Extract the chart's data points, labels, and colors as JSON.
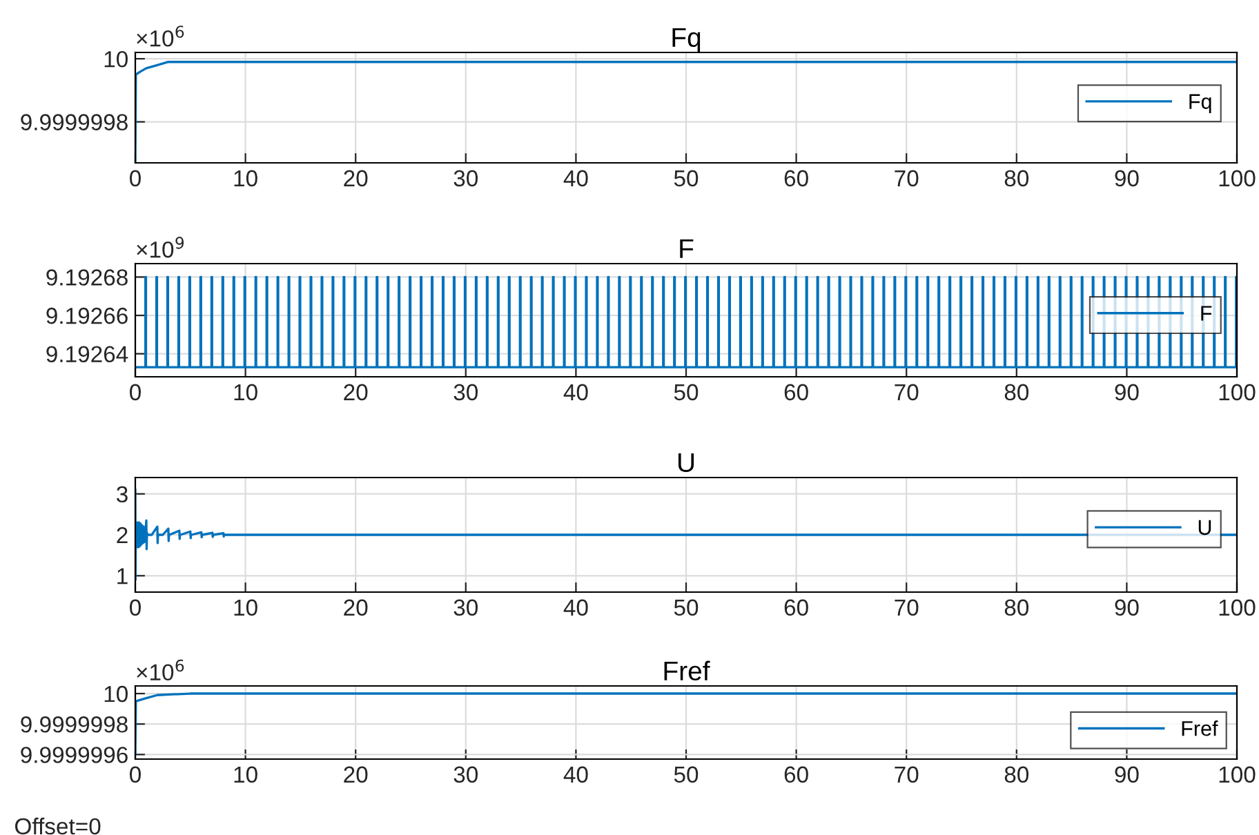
{
  "chart_data": [
    {
      "type": "line",
      "title": "Fq",
      "annotations": [
        "×10$^{6}$"
      ],
      "xlim": [
        0,
        100
      ],
      "xticks": [
        0,
        10,
        20,
        30,
        40,
        50,
        60,
        70,
        80,
        90,
        100
      ],
      "ylim": [
        9.99999967,
        10.00000002
      ],
      "yticks": [
        9.9999998,
        10
      ],
      "grid": true,
      "legend": "top right",
      "series": [
        {
          "name": "Fq",
          "color": "#0072bd",
          "x": [
            0,
            0.05,
            0.5,
            1,
            2,
            3,
            5,
            10,
            100
          ],
          "values": [
            9.99999967,
            9.99999995,
            9.99999996,
            9.99999997,
            9.99999998,
            9.99999999,
            9.99999999,
            9.99999999,
            9.99999999
          ]
        }
      ]
    },
    {
      "type": "step",
      "title": "F",
      "annotations": [
        "×10$^{9}$"
      ],
      "xlim": [
        0,
        100
      ],
      "xticks": [
        0,
        10,
        20,
        30,
        40,
        50,
        60,
        70,
        80,
        90,
        100
      ],
      "ylim": [
        9.192628,
        9.192687
      ],
      "yticks": [
        9.19264,
        9.19266,
        9.19268
      ],
      "grid": true,
      "legend": "top right",
      "series": [
        {
          "name": "F",
          "color": "#0072bd",
          "x": [
            0,
            0.92,
            0.97,
            1.92,
            1.97,
            2.92,
            2.97,
            3.92,
            3.97,
            4.92,
            4.97,
            5.92,
            5.97,
            6.92,
            6.97,
            7.92,
            7.97,
            8.92,
            8.97,
            9.92,
            9.97,
            10.92,
            10.97,
            11.92,
            11.97,
            12.92,
            12.97,
            13.92,
            13.97,
            14.92,
            14.97,
            15.92,
            15.97,
            16.92,
            16.97,
            17.92,
            17.97,
            18.92,
            18.97,
            19.92,
            19.97,
            20.92,
            20.97,
            21.92,
            21.97,
            22.92,
            22.97,
            23.92,
            23.97,
            24.92,
            24.97,
            25.92,
            25.97,
            26.92,
            26.97,
            27.92,
            27.97,
            28.92,
            28.97,
            29.92,
            29.97,
            30.92,
            30.97,
            31.92,
            31.97,
            32.92,
            32.97,
            33.92,
            33.97,
            34.92,
            34.97,
            35.92,
            35.97,
            36.92,
            36.97,
            37.92,
            37.97,
            38.92,
            38.97,
            39.92,
            39.97,
            40.92,
            40.97,
            41.92,
            41.97,
            42.92,
            42.97,
            43.92,
            43.97,
            44.92,
            44.97,
            45.92,
            45.97,
            46.92,
            46.97,
            47.92,
            47.97,
            48.92,
            48.97,
            49.92,
            49.97,
            50.92,
            50.97,
            51.92,
            51.97,
            52.92,
            52.97,
            53.92,
            53.97,
            54.92,
            54.97,
            55.92,
            55.97,
            56.92,
            56.97,
            57.92,
            57.97,
            58.92,
            58.97,
            59.92,
            59.97,
            60.92,
            60.97,
            61.92,
            61.97,
            62.92,
            62.97,
            63.92,
            63.97,
            64.92,
            64.97,
            65.92,
            65.97,
            66.92,
            66.97,
            67.92,
            67.97,
            68.92,
            68.97,
            69.92,
            69.97,
            70.92,
            70.97,
            71.92,
            71.97,
            72.92,
            72.97,
            73.92,
            73.97,
            74.92,
            74.97,
            75.92,
            75.97,
            76.92,
            76.97,
            77.92,
            77.97,
            78.92,
            78.97,
            79.92,
            79.97,
            80.92,
            80.97,
            81.92,
            81.97,
            82.92,
            82.97,
            83.92,
            83.97,
            84.92,
            84.97,
            85.92,
            85.97,
            86.92,
            86.97,
            87.92,
            87.97,
            88.92,
            88.97,
            89.92,
            89.97,
            90.92,
            90.97,
            91.92,
            91.97,
            92.92,
            92.97,
            93.92,
            93.97,
            94.92,
            94.97,
            95.92,
            95.97,
            96.92,
            96.97,
            97.92,
            97.97,
            98.92,
            98.97,
            99.92,
            99.97
          ],
          "values": [
            9.192633,
            9.19268,
            9.192633,
            9.19268,
            9.192633,
            9.19268,
            9.192633,
            9.19268,
            9.192633,
            9.19268,
            9.192633,
            9.19268,
            9.192633,
            9.19268,
            9.192633,
            9.19268,
            9.192633,
            9.19268,
            9.192633,
            9.19268,
            9.192633,
            9.19268,
            9.192633,
            9.19268,
            9.192633,
            9.19268,
            9.192633,
            9.19268,
            9.192633,
            9.19268,
            9.192633,
            9.19268,
            9.192633,
            9.19268,
            9.192633,
            9.19268,
            9.192633,
            9.19268,
            9.192633,
            9.19268,
            9.192633,
            9.19268,
            9.192633,
            9.19268,
            9.192633,
            9.19268,
            9.192633,
            9.19268,
            9.192633,
            9.19268,
            9.192633,
            9.19268,
            9.192633,
            9.19268,
            9.192633,
            9.19268,
            9.192633,
            9.19268,
            9.192633,
            9.19268,
            9.192633,
            9.19268,
            9.192633,
            9.19268,
            9.192633,
            9.19268,
            9.192633,
            9.19268,
            9.192633,
            9.19268,
            9.192633,
            9.19268,
            9.192633,
            9.19268,
            9.192633,
            9.19268,
            9.192633,
            9.19268,
            9.192633,
            9.19268,
            9.192633,
            9.19268,
            9.192633,
            9.19268,
            9.192633,
            9.19268,
            9.192633,
            9.19268,
            9.192633,
            9.19268,
            9.192633,
            9.19268,
            9.192633,
            9.19268,
            9.192633,
            9.19268,
            9.192633,
            9.19268,
            9.192633,
            9.19268,
            9.192633,
            9.19268,
            9.192633,
            9.19268,
            9.192633,
            9.19268,
            9.192633,
            9.19268,
            9.192633,
            9.19268,
            9.192633,
            9.19268,
            9.192633,
            9.19268,
            9.192633,
            9.19268,
            9.192633,
            9.19268,
            9.192633,
            9.19268,
            9.192633,
            9.19268,
            9.192633,
            9.19268,
            9.192633,
            9.19268,
            9.192633,
            9.19268,
            9.192633,
            9.19268,
            9.192633,
            9.19268,
            9.192633,
            9.19268,
            9.192633,
            9.19268,
            9.192633,
            9.19268,
            9.192633,
            9.19268,
            9.192633,
            9.19268,
            9.192633,
            9.19268,
            9.192633,
            9.19268,
            9.192633,
            9.19268,
            9.192633,
            9.19268,
            9.192633,
            9.19268,
            9.192633,
            9.19268,
            9.192633,
            9.19268,
            9.192633,
            9.19268,
            9.192633,
            9.19268,
            9.192633,
            9.19268,
            9.192633,
            9.19268,
            9.192633,
            9.19268,
            9.192633,
            9.19268,
            9.192633,
            9.19268,
            9.192633,
            9.19268,
            9.192633,
            9.19268,
            9.192633,
            9.19268,
            9.192633,
            9.19268,
            9.192633,
            9.19268,
            9.192633,
            9.19268,
            9.192633,
            9.19268,
            9.192633,
            9.19268,
            9.192633,
            9.19268,
            9.192633,
            9.19268,
            9.192633,
            9.19268,
            9.192633,
            9.19268,
            9.192633,
            9.19268,
            9.192633,
            9.19268,
            9.192633,
            9.19268,
            9.192633
          ]
        }
      ]
    },
    {
      "type": "line",
      "title": "U",
      "xlim": [
        0,
        100
      ],
      "xticks": [
        0,
        10,
        20,
        30,
        40,
        50,
        60,
        70,
        80,
        90,
        100
      ],
      "ylim": [
        0.6,
        3.4
      ],
      "yticks": [
        1,
        2,
        3
      ],
      "grid": true,
      "legend": "top right",
      "series": [
        {
          "name": "U",
          "color": "#0072bd",
          "x": [
            0,
            0.02,
            0.05,
            0.1,
            0.15,
            0.2,
            0.25,
            0.3,
            0.35,
            0.4,
            0.45,
            0.5,
            0.55,
            0.6,
            0.65,
            0.7,
            0.75,
            0.8,
            0.85,
            0.9,
            0.95,
            1.0,
            1.03,
            1.06,
            1.1,
            1.5,
            2.0,
            2.03,
            2.06,
            2.1,
            2.5,
            3.0,
            3.03,
            3.06,
            3.1,
            4.0,
            4.03,
            4.06,
            4.1,
            5.0,
            5.03,
            5.06,
            5.1,
            6.0,
            6.03,
            6.06,
            6.1,
            7.0,
            7.03,
            7.06,
            7.1,
            8.0,
            8.03,
            8.06,
            8.1,
            100
          ],
          "values": [
            3.1,
            0.9,
            2.3,
            1.7,
            2.3,
            1.7,
            2.3,
            1.7,
            2.3,
            1.72,
            2.28,
            1.75,
            2.25,
            1.78,
            2.22,
            1.8,
            2.2,
            1.82,
            2.18,
            1.84,
            2.16,
            2.35,
            1.65,
            2.05,
            2.0,
            2.0,
            2.2,
            1.8,
            2.02,
            2.0,
            2.0,
            2.15,
            1.85,
            2.01,
            2.0,
            2.1,
            1.9,
            2.0,
            2.0,
            2.08,
            1.92,
            2.0,
            2.0,
            2.06,
            1.94,
            2.0,
            2.0,
            2.05,
            1.95,
            2.0,
            2.0,
            2.04,
            1.96,
            2.0,
            2.0,
            2.0
          ]
        }
      ]
    },
    {
      "type": "line",
      "title": "Fref",
      "annotations": [
        "×10$^{6}$",
        "Offset=0"
      ],
      "xlim": [
        0,
        100
      ],
      "xticks": [
        0,
        10,
        20,
        30,
        40,
        50,
        60,
        70,
        80,
        90,
        100
      ],
      "ylim": [
        9.99999957,
        10.00000005
      ],
      "yticks": [
        9.9999996,
        9.9999998,
        10
      ],
      "grid": true,
      "legend": "bottom right",
      "series": [
        {
          "name": "Fref",
          "color": "#0072bd",
          "x": [
            0,
            0.05,
            1,
            2,
            5,
            100
          ],
          "values": [
            9.9999996,
            9.99999995,
            9.99999997,
            9.99999999,
            10,
            10
          ]
        }
      ]
    }
  ]
}
